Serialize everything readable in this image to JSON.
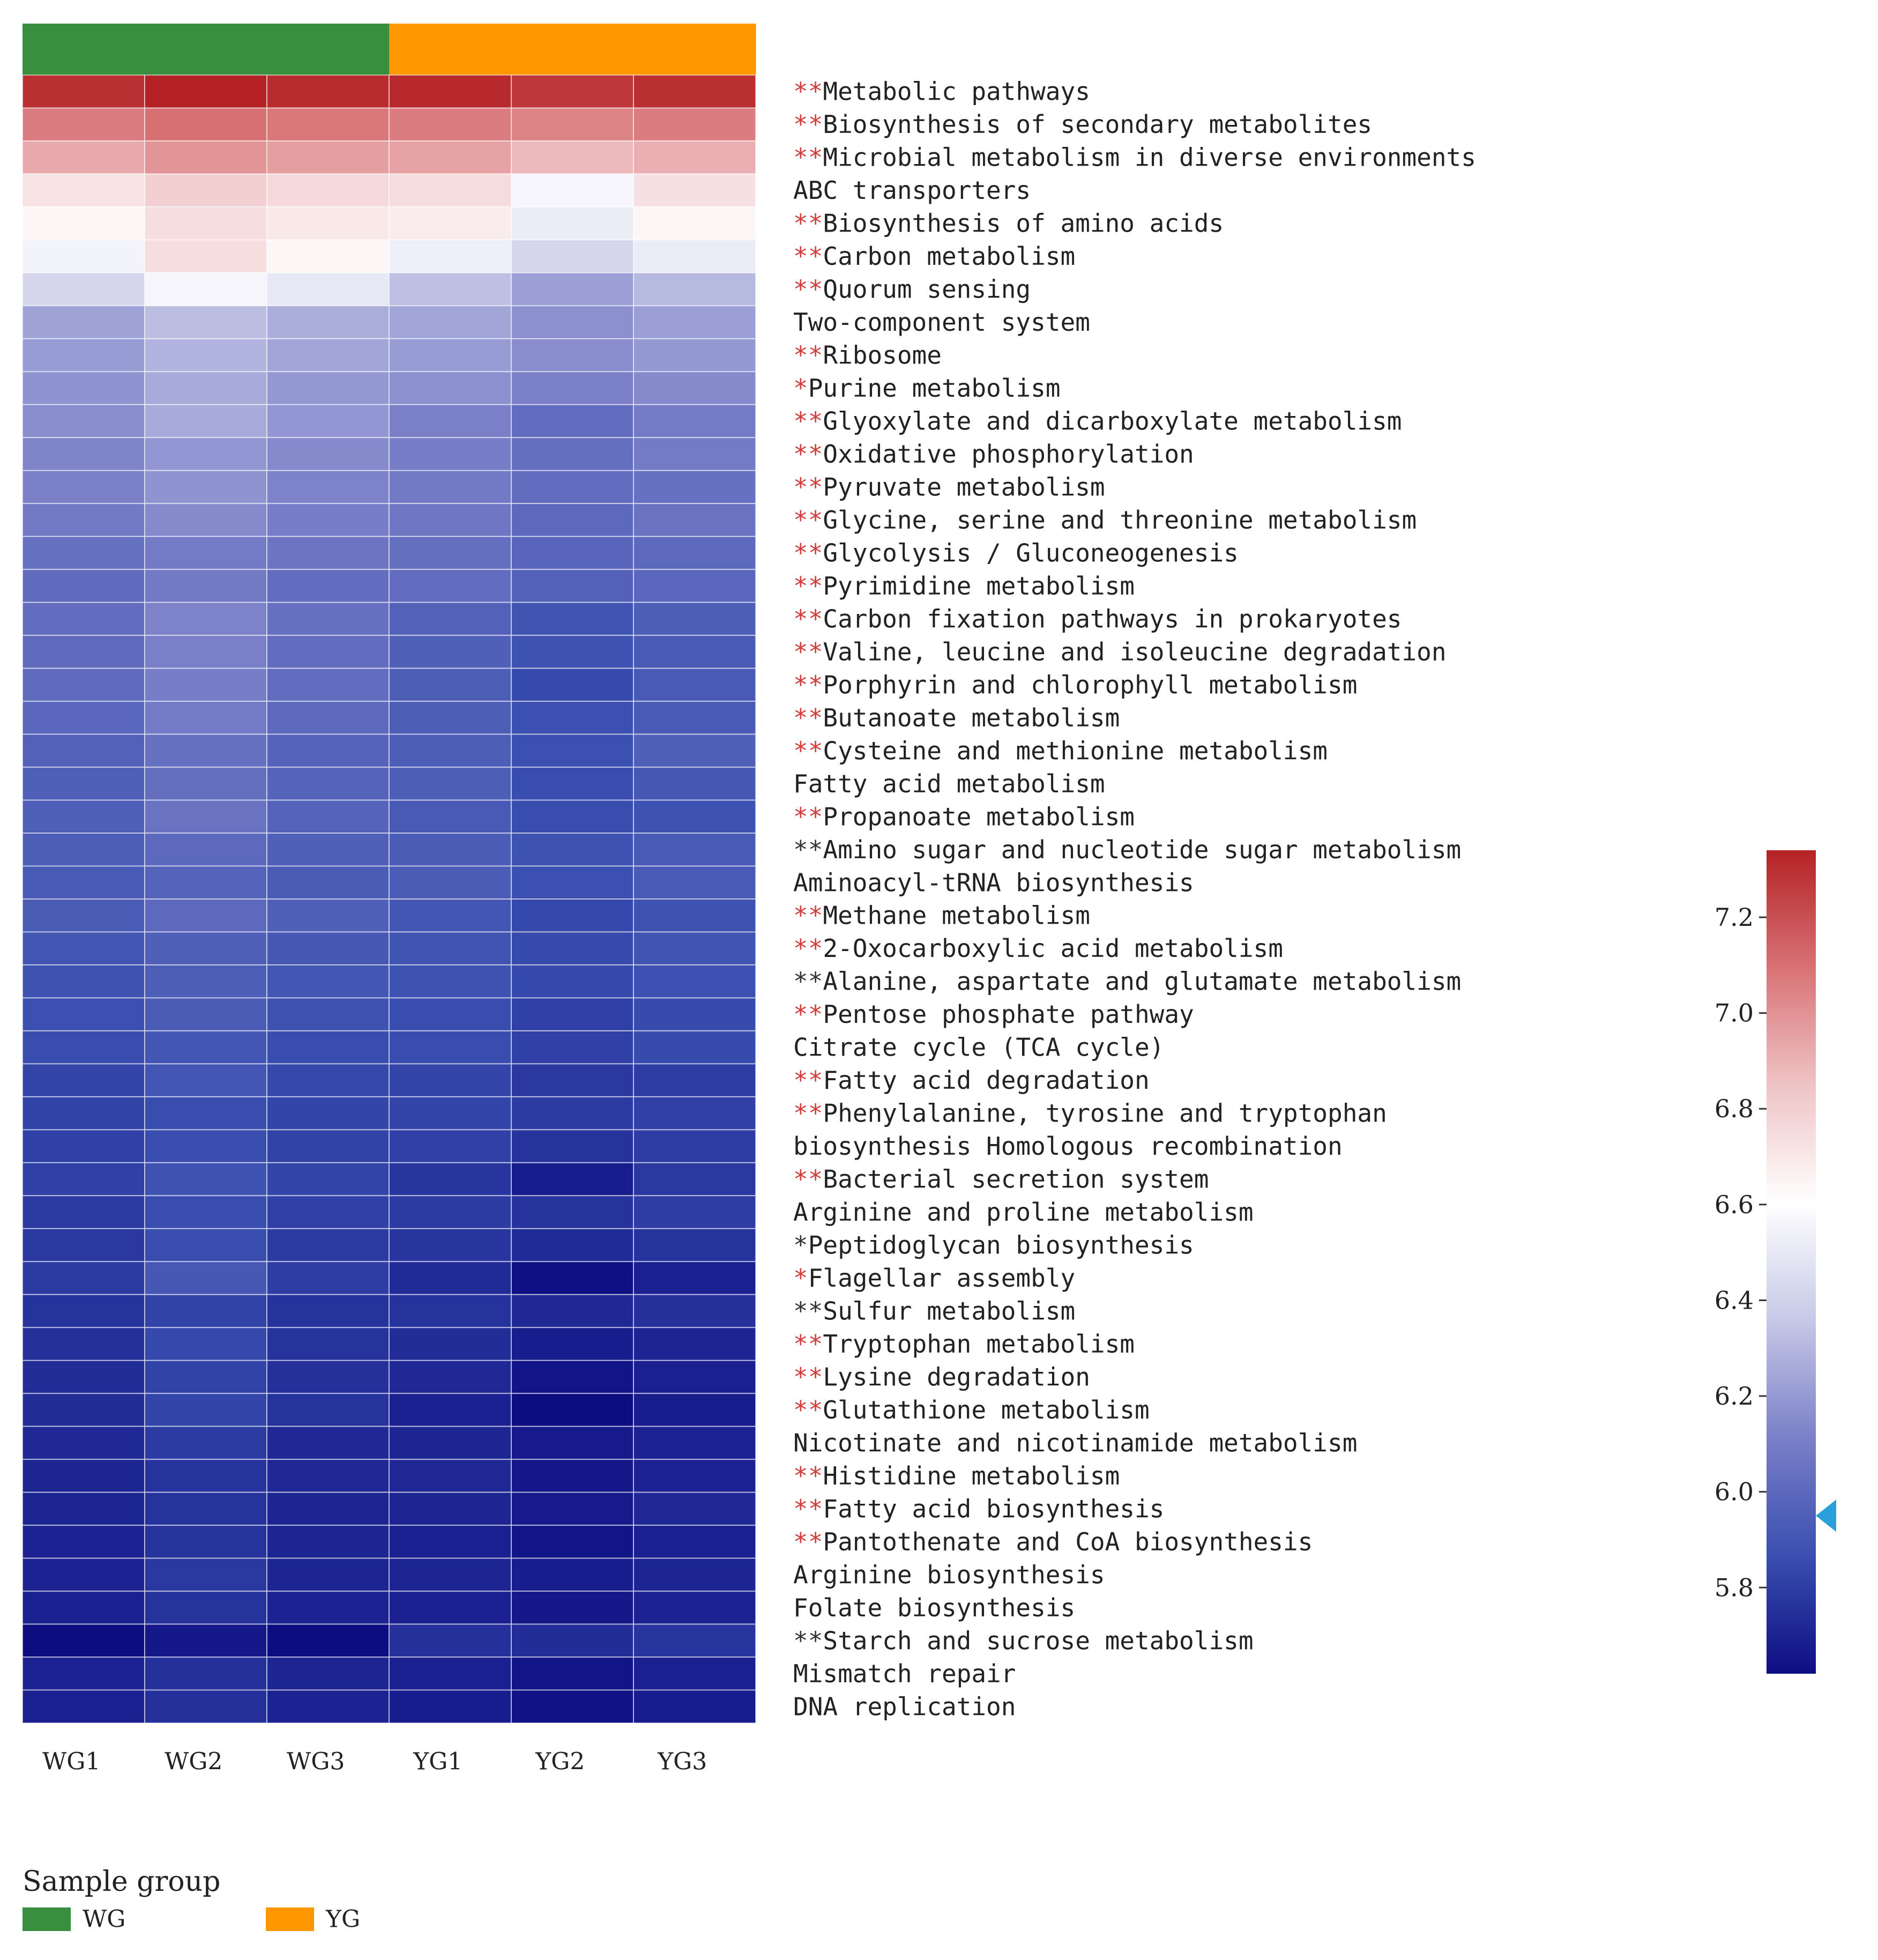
{
  "chart_data": {
    "type": "heatmap",
    "title": "",
    "xlabel": "",
    "ylabel": "",
    "samples": [
      "WG1",
      "WG2",
      "WG3",
      "YG1",
      "YG2",
      "YG3"
    ],
    "sample_groups": [
      "WG",
      "WG",
      "WG",
      "YG",
      "YG",
      "YG"
    ],
    "group_legend": {
      "title": "Sample group",
      "items": [
        {
          "label": "WG",
          "color": "#3a8f3e"
        },
        {
          "label": "YG",
          "color": "#ff9800"
        }
      ]
    },
    "rows": [
      {
        "prefix": "**",
        "prefix_color": "#d23c3c",
        "label": "Metabolic pathways"
      },
      {
        "prefix": "**",
        "prefix_color": "#d23c3c",
        "label": "Biosynthesis of secondary metabolites"
      },
      {
        "prefix": "**",
        "prefix_color": "#d23c3c",
        "label": "Microbial metabolism in diverse environments"
      },
      {
        "prefix": "",
        "prefix_color": "",
        "label": "ABC transporters"
      },
      {
        "prefix": "**",
        "prefix_color": "#d23c3c",
        "label": "Biosynthesis of amino acids"
      },
      {
        "prefix": "**",
        "prefix_color": "#d23c3c",
        "label": "Carbon metabolism"
      },
      {
        "prefix": "**",
        "prefix_color": "#d23c3c",
        "label": "Quorum sensing"
      },
      {
        "prefix": "",
        "prefix_color": "",
        "label": "Two-component system"
      },
      {
        "prefix": "**",
        "prefix_color": "#d23c3c",
        "label": "Ribosome"
      },
      {
        "prefix": "*",
        "prefix_color": "#d23c3c",
        "label": "Purine metabolism"
      },
      {
        "prefix": "**",
        "prefix_color": "#d23c3c",
        "label": "Glyoxylate and dicarboxylate metabolism"
      },
      {
        "prefix": "**",
        "prefix_color": "#d23c3c",
        "label": "Oxidative phosphorylation"
      },
      {
        "prefix": "**",
        "prefix_color": "#d23c3c",
        "label": "Pyruvate metabolism"
      },
      {
        "prefix": "**",
        "prefix_color": "#d23c3c",
        "label": "Glycine, serine and threonine metabolism"
      },
      {
        "prefix": "**",
        "prefix_color": "#d23c3c",
        "label": "Glycolysis / Gluconeogenesis"
      },
      {
        "prefix": "**",
        "prefix_color": "#d23c3c",
        "label": "Pyrimidine metabolism"
      },
      {
        "prefix": "**",
        "prefix_color": "#d23c3c",
        "label": "Carbon fixation pathways in prokaryotes"
      },
      {
        "prefix": "**",
        "prefix_color": "#d23c3c",
        "label": "Valine, leucine and isoleucine degradation"
      },
      {
        "prefix": "**",
        "prefix_color": "#d23c3c",
        "label": "Porphyrin and chlorophyll metabolism"
      },
      {
        "prefix": "**",
        "prefix_color": "#d23c3c",
        "label": "Butanoate metabolism"
      },
      {
        "prefix": "**",
        "prefix_color": "#d23c3c",
        "label": "Cysteine and methionine metabolism"
      },
      {
        "prefix": "",
        "prefix_color": "",
        "label": "Fatty acid metabolism"
      },
      {
        "prefix": "**",
        "prefix_color": "#d23c3c",
        "label": "Propanoate metabolism"
      },
      {
        "prefix": "**",
        "prefix_color": "#333333",
        "label": "Amino sugar and nucleotide sugar metabolism"
      },
      {
        "prefix": "",
        "prefix_color": "",
        "label": "Aminoacyl-tRNA biosynthesis"
      },
      {
        "prefix": "**",
        "prefix_color": "#d23c3c",
        "label": "Methane metabolism"
      },
      {
        "prefix": "**",
        "prefix_color": "#d23c3c",
        "label": "2-Oxocarboxylic acid metabolism"
      },
      {
        "prefix": "**",
        "prefix_color": "#333333",
        "label": "Alanine, aspartate and glutamate metabolism"
      },
      {
        "prefix": "**",
        "prefix_color": "#d23c3c",
        "label": "Pentose phosphate pathway"
      },
      {
        "prefix": "",
        "prefix_color": "",
        "label": "Citrate cycle (TCA cycle)"
      },
      {
        "prefix": "**",
        "prefix_color": "#d23c3c",
        "label": "Fatty acid degradation"
      },
      {
        "prefix": "**",
        "prefix_color": "#d23c3c",
        "label": "Phenylalanine, tyrosine and tryptophan"
      },
      {
        "prefix": "",
        "prefix_color": "",
        "label": "biosynthesis Homologous recombination"
      },
      {
        "prefix": "**",
        "prefix_color": "#d23c3c",
        "label": "Bacterial secretion system"
      },
      {
        "prefix": "",
        "prefix_color": "",
        "label": "Arginine and proline metabolism"
      },
      {
        "prefix": "*",
        "prefix_color": "#333333",
        "label": "Peptidoglycan biosynthesis"
      },
      {
        "prefix": "*",
        "prefix_color": "#d23c3c",
        "label": "Flagellar assembly"
      },
      {
        "prefix": "**",
        "prefix_color": "#333333",
        "label": "Sulfur metabolism"
      },
      {
        "prefix": "**",
        "prefix_color": "#d23c3c",
        "label": "Tryptophan metabolism"
      },
      {
        "prefix": "**",
        "prefix_color": "#d23c3c",
        "label": "Lysine degradation"
      },
      {
        "prefix": "**",
        "prefix_color": "#d23c3c",
        "label": "Glutathione metabolism"
      },
      {
        "prefix": "",
        "prefix_color": "",
        "label": "Nicotinate and nicotinamide metabolism"
      },
      {
        "prefix": "**",
        "prefix_color": "#d23c3c",
        "label": "Histidine metabolism"
      },
      {
        "prefix": "**",
        "prefix_color": "#d23c3c",
        "label": "Fatty acid biosynthesis"
      },
      {
        "prefix": "**",
        "prefix_color": "#d23c3c",
        "label": "Pantothenate and CoA biosynthesis"
      },
      {
        "prefix": "",
        "prefix_color": "",
        "label": "Arginine biosynthesis"
      },
      {
        "prefix": "",
        "prefix_color": "",
        "label": "Folate biosynthesis"
      },
      {
        "prefix": "**",
        "prefix_color": "#333333",
        "label": "Starch and sucrose metabolism"
      },
      {
        "prefix": "",
        "prefix_color": "",
        "label": "Mismatch repair"
      },
      {
        "prefix": "",
        "prefix_color": "",
        "label": "DNA replication"
      }
    ],
    "values": [
      [
        7.3,
        7.34,
        7.31,
        7.32,
        7.28,
        7.3
      ],
      [
        7.06,
        7.1,
        7.08,
        7.06,
        7.04,
        7.06
      ],
      [
        6.93,
        6.99,
        6.96,
        6.95,
        6.88,
        6.91
      ],
      [
        6.72,
        6.8,
        6.76,
        6.75,
        6.56,
        6.73
      ],
      [
        6.64,
        6.74,
        6.7,
        6.68,
        6.52,
        6.64
      ],
      [
        6.55,
        6.74,
        6.64,
        6.53,
        6.42,
        6.52
      ],
      [
        6.42,
        6.56,
        6.5,
        6.33,
        6.22,
        6.31
      ],
      [
        6.23,
        6.32,
        6.27,
        6.24,
        6.17,
        6.22
      ],
      [
        6.21,
        6.29,
        6.24,
        6.21,
        6.16,
        6.2
      ],
      [
        6.18,
        6.26,
        6.2,
        6.17,
        6.11,
        6.15
      ],
      [
        6.16,
        6.26,
        6.19,
        6.11,
        6.02,
        6.09
      ],
      [
        6.13,
        6.19,
        6.15,
        6.1,
        6.03,
        6.09
      ],
      [
        6.11,
        6.18,
        6.12,
        6.08,
        6.02,
        6.04
      ],
      [
        6.08,
        6.15,
        6.1,
        6.07,
        6.0,
        6.05
      ],
      [
        6.04,
        6.09,
        6.06,
        6.03,
        5.98,
        6.0
      ],
      [
        6.01,
        6.08,
        6.02,
        6.02,
        5.96,
        5.99
      ],
      [
        6.02,
        6.12,
        6.04,
        5.96,
        5.89,
        5.94
      ],
      [
        6.01,
        6.11,
        6.02,
        5.95,
        5.88,
        5.92
      ],
      [
        6.01,
        6.1,
        6.02,
        5.94,
        5.85,
        5.92
      ],
      [
        5.99,
        6.09,
        6.0,
        5.94,
        5.87,
        5.92
      ],
      [
        5.96,
        6.04,
        5.97,
        5.94,
        5.87,
        5.95
      ],
      [
        5.95,
        6.03,
        5.97,
        5.94,
        5.86,
        5.91
      ],
      [
        5.95,
        6.05,
        5.97,
        5.92,
        5.86,
        5.88
      ],
      [
        5.94,
        6.0,
        5.95,
        5.93,
        5.88,
        5.92
      ],
      [
        5.92,
        5.97,
        5.93,
        5.93,
        5.87,
        5.92
      ],
      [
        5.93,
        6.0,
        5.95,
        5.9,
        5.84,
        5.88
      ],
      [
        5.9,
        5.95,
        5.91,
        5.89,
        5.85,
        5.89
      ],
      [
        5.88,
        5.94,
        5.9,
        5.88,
        5.84,
        5.87
      ],
      [
        5.87,
        5.93,
        5.88,
        5.86,
        5.81,
        5.85
      ],
      [
        5.86,
        5.9,
        5.86,
        5.86,
        5.81,
        5.85
      ],
      [
        5.83,
        5.9,
        5.84,
        5.83,
        5.78,
        5.8
      ],
      [
        5.82,
        5.86,
        5.83,
        5.83,
        5.79,
        5.81
      ],
      [
        5.81,
        5.86,
        5.82,
        5.81,
        5.76,
        5.8
      ],
      [
        5.81,
        5.88,
        5.83,
        5.77,
        5.68,
        5.78
      ],
      [
        5.79,
        5.86,
        5.81,
        5.79,
        5.76,
        5.8
      ],
      [
        5.78,
        5.86,
        5.79,
        5.77,
        5.73,
        5.76
      ],
      [
        5.79,
        5.91,
        5.8,
        5.73,
        5.63,
        5.69
      ],
      [
        5.76,
        5.82,
        5.76,
        5.76,
        5.72,
        5.75
      ],
      [
        5.75,
        5.84,
        5.76,
        5.74,
        5.68,
        5.71
      ],
      [
        5.74,
        5.82,
        5.75,
        5.72,
        5.65,
        5.69
      ],
      [
        5.74,
        5.83,
        5.76,
        5.69,
        5.58,
        5.68
      ],
      [
        5.72,
        5.79,
        5.72,
        5.71,
        5.67,
        5.7
      ],
      [
        5.71,
        5.76,
        5.72,
        5.72,
        5.66,
        5.7
      ],
      [
        5.71,
        5.76,
        5.71,
        5.71,
        5.67,
        5.72
      ],
      [
        5.7,
        5.76,
        5.71,
        5.69,
        5.65,
        5.69
      ],
      [
        5.7,
        5.78,
        5.71,
        5.71,
        5.68,
        5.71
      ],
      [
        5.69,
        5.76,
        5.7,
        5.69,
        5.66,
        5.7
      ],
      [
        5.62,
        5.66,
        5.62,
        5.75,
        5.74,
        5.77
      ],
      [
        5.7,
        5.75,
        5.71,
        5.69,
        5.65,
        5.69
      ],
      [
        5.69,
        5.75,
        5.7,
        5.68,
        5.64,
        5.68
      ]
    ],
    "colorbar": {
      "min": 5.62,
      "max": 7.34,
      "ticks": [
        7.2,
        7.0,
        6.8,
        6.6,
        6.4,
        6.2,
        6.0,
        5.8
      ],
      "tick_labels": [
        "7.2",
        "7.0",
        "6.8",
        "6.6",
        "6.4",
        "6.2",
        "6.0",
        "5.8"
      ],
      "colors": [
        "#0d0d82",
        "#3a4fb0",
        "#7a7fc8",
        "#c6c8e6",
        "#ffffff",
        "#efc4c6",
        "#d87275",
        "#b42225"
      ],
      "marker_value": 5.95,
      "marker_color": "#29a0dc"
    },
    "grid": true
  }
}
